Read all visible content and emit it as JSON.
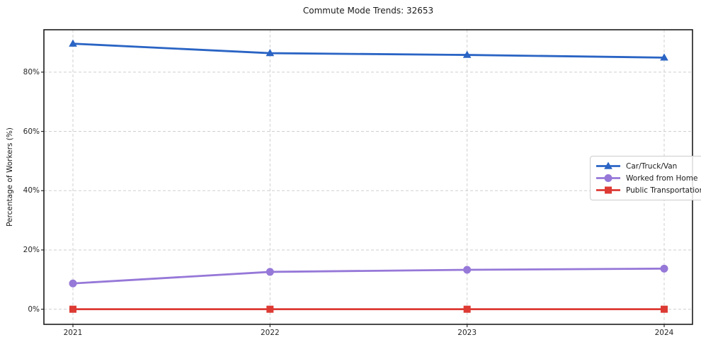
{
  "chart_data": {
    "type": "line",
    "title": "Commute Mode Trends: 32653",
    "xlabel": "",
    "ylabel": "Percentage of Workers (%)",
    "categories": [
      "2021",
      "2022",
      "2023",
      "2024"
    ],
    "series": [
      {
        "name": "Car/Truck/Van",
        "marker": "triangle",
        "color": "#2a64c4",
        "values": [
          89.6,
          86.4,
          85.8,
          84.9
        ]
      },
      {
        "name": "Worked from Home",
        "marker": "circle",
        "color": "#9678d8",
        "values": [
          8.7,
          12.6,
          13.3,
          13.7
        ]
      },
      {
        "name": "Public Transportation",
        "marker": "square",
        "color": "#dd3a34",
        "values": [
          0.0,
          0.0,
          0.0,
          0.0
        ]
      }
    ],
    "yticks": [
      0,
      20,
      40,
      60,
      80
    ],
    "ytick_labels": [
      "0%",
      "20%",
      "40%",
      "60%",
      "80%"
    ],
    "ylim": [
      -5.1,
      94.3
    ],
    "grid": true,
    "legend_position": "center-right",
    "frame_color": "#1c1c1c",
    "grid_color": "#cfcfcf"
  }
}
